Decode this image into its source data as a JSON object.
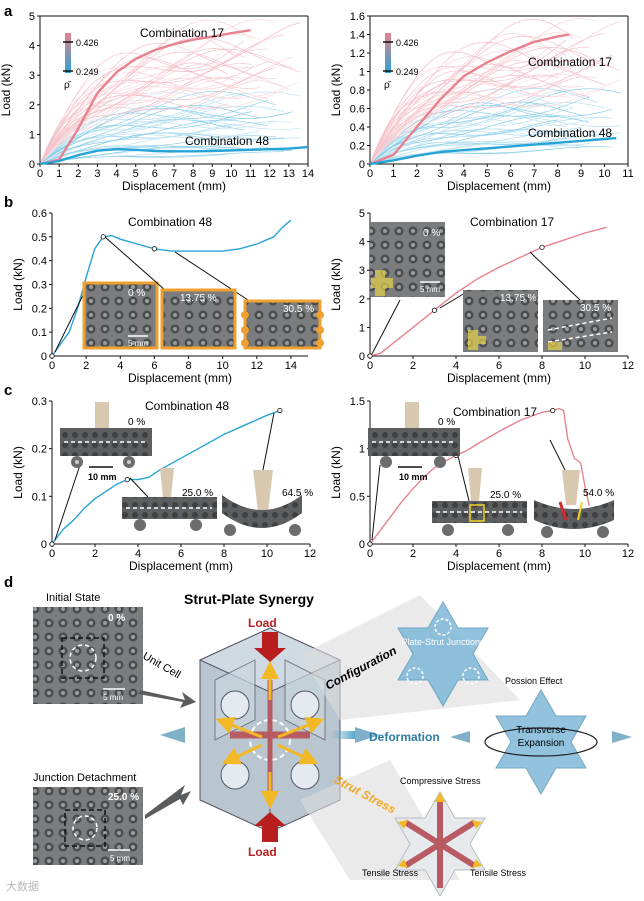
{
  "panels": {
    "a": "a",
    "b": "b",
    "c": "c",
    "d": "d"
  },
  "colorbar": {
    "high": "0.426",
    "low": "0.249",
    "symbol": "ρ̄"
  },
  "colors": {
    "red": "#e8828f",
    "blue": "#27a3d6",
    "pink": "#f2b8c0",
    "lightblue": "#8fd0ea",
    "orange": "#f0a030",
    "darkred": "#b81e1e",
    "yellow": "#f2b825"
  },
  "chart_data": [
    {
      "id": "a-left",
      "type": "line",
      "xlabel": "Displacement (mm)",
      "ylabel": "Load (kN)",
      "xlim": [
        0,
        14
      ],
      "ylim": [
        0,
        5
      ],
      "xticks": [
        "0",
        "1",
        "2",
        "3",
        "4",
        "5",
        "6",
        "7",
        "8",
        "9",
        "10",
        "11",
        "12",
        "13",
        "14"
      ],
      "yticks": [
        "0",
        "1",
        "2",
        "3",
        "4",
        "5"
      ],
      "annotations": [
        "Combination 17",
        "Combination 48"
      ],
      "series": [
        {
          "name": "Combination 17",
          "color": "#e8828f",
          "x": [
            0,
            1,
            2,
            3,
            4,
            5,
            6,
            7,
            8,
            9,
            10,
            11
          ],
          "y": [
            0,
            0.15,
            1.2,
            2.4,
            3.1,
            3.55,
            3.85,
            4.05,
            4.2,
            4.3,
            4.42,
            4.52
          ]
        },
        {
          "name": "Combination 48",
          "color": "#27a3d6",
          "x": [
            0,
            1,
            2,
            3,
            4,
            5,
            6,
            7,
            8,
            9,
            10,
            11,
            12,
            13,
            14
          ],
          "y": [
            0,
            0.1,
            0.3,
            0.45,
            0.5,
            0.48,
            0.44,
            0.43,
            0.43,
            0.44,
            0.46,
            0.48,
            0.5,
            0.52,
            0.57
          ]
        }
      ]
    },
    {
      "id": "a-right",
      "type": "line",
      "xlabel": "Displacement (mm)",
      "ylabel": "Load (kN)",
      "xlim": [
        0,
        11
      ],
      "ylim": [
        0,
        1.6
      ],
      "xticks": [
        "0",
        "1",
        "2",
        "3",
        "4",
        "5",
        "6",
        "7",
        "8",
        "9",
        "10",
        "11"
      ],
      "yticks": [
        "0",
        "0.2",
        "0.4",
        "0.6",
        "0.8",
        "1",
        "1.2",
        "1.4",
        "1.6"
      ],
      "annotations": [
        "Combination 17",
        "Combination 48"
      ],
      "series": [
        {
          "name": "Combination 17",
          "color": "#e8828f",
          "x": [
            0,
            1,
            2,
            3,
            4,
            5,
            6,
            7,
            8,
            8.5
          ],
          "y": [
            0,
            0.1,
            0.4,
            0.7,
            0.95,
            1.1,
            1.22,
            1.32,
            1.38,
            1.4
          ]
        },
        {
          "name": "Combination 48",
          "color": "#27a3d6",
          "x": [
            0,
            1,
            2,
            3,
            4,
            5,
            6,
            7,
            8,
            9,
            10,
            10.5
          ],
          "y": [
            0,
            0.04,
            0.09,
            0.13,
            0.15,
            0.17,
            0.19,
            0.21,
            0.23,
            0.25,
            0.27,
            0.28
          ]
        }
      ]
    },
    {
      "id": "b-left",
      "type": "line",
      "title": "Combination 48",
      "xlabel": "Displacement (mm)",
      "ylabel": "Load (kN)",
      "xlim": [
        0,
        15
      ],
      "ylim": [
        0,
        0.6
      ],
      "xticks": [
        "0",
        "2",
        "4",
        "6",
        "8",
        "10",
        "12",
        "14"
      ],
      "yticks": [
        "0",
        "0.1",
        "0.2",
        "0.3",
        "0.4",
        "0.5",
        "0.6"
      ],
      "insets": [
        "0 %",
        "13.75 %",
        "30.5 %"
      ],
      "scalebar": "5 mm",
      "series": [
        {
          "name": "Combination 48",
          "color": "#27a3d6",
          "x": [
            0,
            0.5,
            1,
            1.5,
            2,
            2.5,
            3,
            3.5,
            4,
            5,
            6,
            7,
            8,
            9,
            10,
            11,
            12,
            13,
            13.5,
            14
          ],
          "y": [
            0,
            0.05,
            0.1,
            0.2,
            0.33,
            0.45,
            0.5,
            0.505,
            0.49,
            0.47,
            0.45,
            0.44,
            0.44,
            0.44,
            0.44,
            0.45,
            0.47,
            0.5,
            0.54,
            0.57
          ]
        }
      ]
    },
    {
      "id": "b-right",
      "type": "line",
      "title": "Combination 17",
      "xlabel": "Displacement (mm)",
      "ylabel": "Load (kN)",
      "xlim": [
        0,
        12
      ],
      "ylim": [
        0,
        5
      ],
      "xticks": [
        "0",
        "2",
        "4",
        "6",
        "8",
        "10",
        "12"
      ],
      "yticks": [
        "0",
        "1",
        "2",
        "3",
        "4",
        "5"
      ],
      "insets": [
        "0 %",
        "13.75 %",
        "30.5 %"
      ],
      "scalebar": "5 mm",
      "series": [
        {
          "name": "Combination 17",
          "color": "#e8828f",
          "x": [
            0,
            0.5,
            1,
            2,
            3,
            4,
            5,
            6,
            7,
            8,
            9,
            10,
            11
          ],
          "y": [
            0,
            0.1,
            0.4,
            1.0,
            1.6,
            2.2,
            2.7,
            3.1,
            3.45,
            3.8,
            4.05,
            4.3,
            4.5
          ]
        }
      ]
    },
    {
      "id": "c-left",
      "type": "line",
      "title": "Combination 48",
      "xlabel": "Displacement (mm)",
      "ylabel": "Load (kN)",
      "xlim": [
        0,
        12
      ],
      "ylim": [
        0,
        0.3
      ],
      "xticks": [
        "0",
        "2",
        "4",
        "6",
        "8",
        "10",
        "12"
      ],
      "yticks": [
        "0",
        "0.1",
        "0.2",
        "0.3"
      ],
      "insets": [
        "0 %",
        "25.0 %",
        "64.5 %"
      ],
      "scalebar": "10 mm",
      "series": [
        {
          "name": "Combination 48",
          "color": "#27a3d6",
          "x": [
            0,
            0.5,
            1,
            1.5,
            2,
            2.5,
            3,
            3.5,
            4,
            4.5,
            5,
            6,
            7,
            8,
            9,
            10,
            10.6
          ],
          "y": [
            0,
            0.03,
            0.05,
            0.075,
            0.095,
            0.11,
            0.125,
            0.135,
            0.135,
            0.14,
            0.155,
            0.18,
            0.205,
            0.23,
            0.25,
            0.27,
            0.28
          ]
        }
      ]
    },
    {
      "id": "c-right",
      "type": "line",
      "title": "Combination 17",
      "xlabel": "Displacement (mm)",
      "ylabel": "Load (kN)",
      "xlim": [
        0,
        12
      ],
      "ylim": [
        0,
        1.5
      ],
      "xticks": [
        "0",
        "2",
        "4",
        "6",
        "8",
        "10",
        "12"
      ],
      "yticks": [
        "0",
        "0.5",
        "1",
        "1.5"
      ],
      "insets": [
        "0 %",
        "25.0 %",
        "54.0 %"
      ],
      "scalebar": "10 mm",
      "series": [
        {
          "name": "Combination 17",
          "color": "#e8828f",
          "x": [
            0,
            0.5,
            1,
            1.5,
            2,
            2.5,
            3,
            3.5,
            4,
            4.5,
            5,
            6,
            7,
            8,
            8.5,
            8.8,
            9,
            9.2,
            9.5,
            9.8,
            10,
            10.2
          ],
          "y": [
            0,
            0.15,
            0.3,
            0.45,
            0.58,
            0.7,
            0.8,
            0.87,
            0.93,
            0.98,
            1.05,
            1.18,
            1.3,
            1.38,
            1.4,
            1.42,
            1.4,
            1.1,
            0.9,
            0.85,
            0.6,
            0.4
          ]
        }
      ]
    }
  ],
  "d": {
    "title": "Strut-Plate Synergy",
    "initial_state": "Initial State",
    "initial_pct": "0 %",
    "junction_detachment": "Junction Detachment",
    "junction_pct": "25.0 %",
    "unit_cell": "Unit Cell",
    "scalebar": "5 mm",
    "load_top": "Load",
    "load_bottom": "Load",
    "configuration": "Configuration",
    "deformation": "Deformation",
    "strut_stress": "Strut Stress",
    "junctions": "Plate-Strut Junctions",
    "possion": "Possion Effect",
    "transverse": "Transverse",
    "expansion": "Expansion",
    "compressive": "Compressive Stress",
    "tensile_left": "Tensile Stress",
    "tensile_right": "Tensile Stress"
  },
  "watermark": "大数据"
}
